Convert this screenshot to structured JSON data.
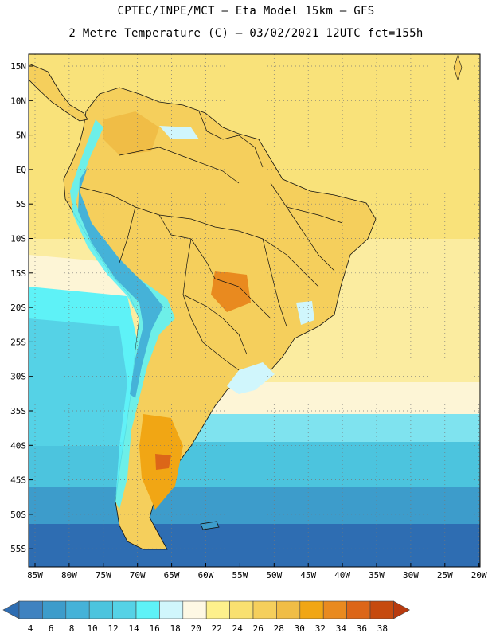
{
  "header": {
    "title_line1": "CPTEC/INPE/MCT –  Eta Model 15km – GFS",
    "title_line2": "2 Metre Temperature (C) – 03/02/2021 12UTC fct=155h"
  },
  "chart_data": {
    "type": "map",
    "variable": "2 Metre Temperature",
    "units": "C",
    "latitude_labels": [
      "15N",
      "10N",
      "5N",
      "EQ",
      "5S",
      "10S",
      "15S",
      "20S",
      "25S",
      "30S",
      "35S",
      "40S",
      "45S",
      "50S",
      "55S"
    ],
    "longitude_labels": [
      "85W",
      "80W",
      "75W",
      "70W",
      "65W",
      "60W",
      "55W",
      "50W",
      "45W",
      "40W",
      "35W",
      "30W",
      "25W",
      "20W"
    ],
    "colorbar": {
      "labels": [
        "4",
        "6",
        "8",
        "10",
        "12",
        "14",
        "16",
        "18",
        "20",
        "22",
        "24",
        "26",
        "28",
        "30",
        "32",
        "34",
        "36",
        "38"
      ],
      "colors": [
        "#2e6db2",
        "#3f82c0",
        "#3d9ccb",
        "#45b2d8",
        "#4cc4de",
        "#55d2e6",
        "#5ef2f7",
        "#d0f6fc",
        "#fef8e4",
        "#fdf08c",
        "#f9e070",
        "#f5cf5c",
        "#f0bd46",
        "#f1a614",
        "#e98a1f",
        "#dc6618",
        "#c64a0e",
        "#b83a0e"
      ]
    }
  }
}
